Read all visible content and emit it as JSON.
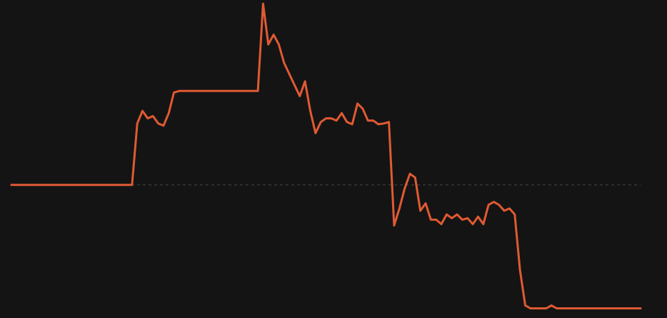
{
  "chart_data": {
    "type": "line",
    "color": "#e05a33",
    "reference_line": 0,
    "reference_color": "#444444",
    "ylim": [
      -180,
      250
    ],
    "values": [
      0,
      0,
      0,
      0,
      0,
      0,
      0,
      0,
      0,
      0,
      0,
      0,
      0,
      0,
      0,
      0,
      0,
      0,
      0,
      0,
      0,
      0,
      0,
      0,
      83,
      100,
      90,
      93,
      83,
      80,
      97,
      125,
      127,
      127,
      127,
      127,
      127,
      127,
      127,
      127,
      127,
      127,
      127,
      127,
      127,
      127,
      127,
      127,
      245,
      190,
      203,
      190,
      165,
      150,
      135,
      120,
      140,
      100,
      70,
      85,
      90,
      90,
      87,
      97,
      85,
      82,
      110,
      103,
      87,
      87,
      82,
      83,
      85,
      -55,
      -32,
      -5,
      15,
      10,
      -35,
      -25,
      -47,
      -47,
      -53,
      -40,
      -45,
      -40,
      -47,
      -45,
      -53,
      -43,
      -53,
      -27,
      -23,
      -27,
      -35,
      -32,
      -40,
      -115,
      -163,
      -167,
      -167,
      -167,
      -167,
      -163,
      -167,
      -167,
      -167,
      -167,
      -167,
      -167,
      -167,
      -167,
      -167,
      -167,
      -167,
      -167,
      -167,
      -167,
      -167,
      -167,
      -167
    ]
  }
}
